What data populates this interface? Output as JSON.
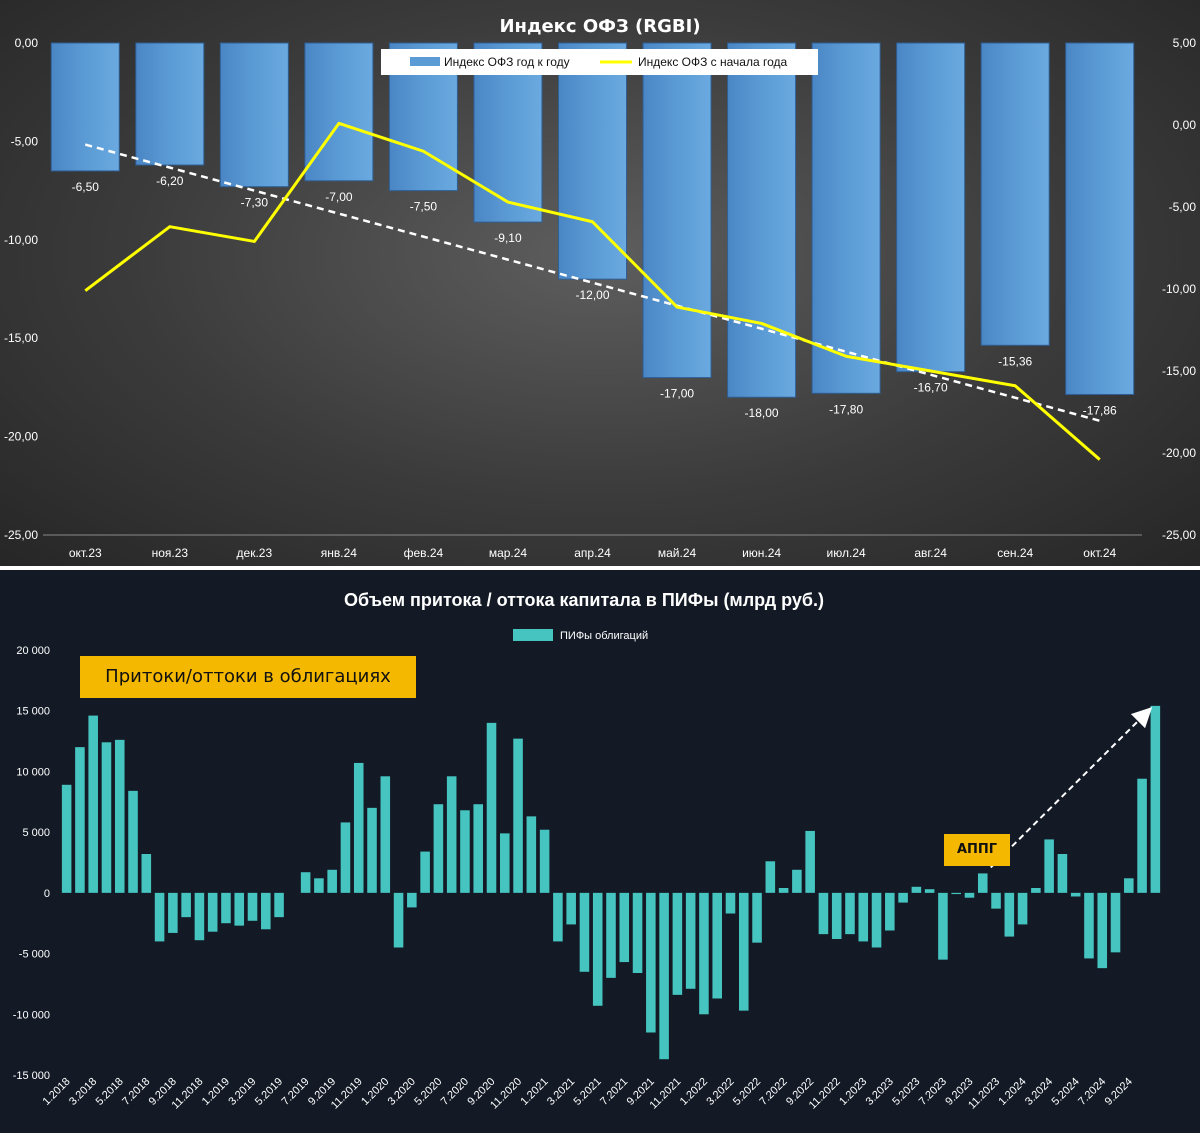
{
  "chart_data": [
    {
      "type": "bar",
      "title": "Индекс ОФЗ (RGBI)",
      "categories": [
        "окт.23",
        "ноя.23",
        "дек.23",
        "янв.24",
        "фев.24",
        "мар.24",
        "апр.24",
        "май.24",
        "июн.24",
        "июл.24",
        "авг.24",
        "сен.24",
        "окт.24"
      ],
      "series": [
        {
          "name": "Индекс ОФЗ год к году",
          "type": "bar",
          "axis": "left",
          "values": [
            -6.5,
            -6.2,
            -7.3,
            -7.0,
            -7.5,
            -9.1,
            -12.0,
            -17.0,
            -18.0,
            -17.8,
            -16.7,
            -15.36,
            -17.86
          ],
          "labels": [
            "-6,50",
            "-6,20",
            "-7,30",
            "-7,00",
            "-7,50",
            "-9,10",
            "-12,00",
            "-17,00",
            "-18,00",
            "-17,80",
            "-16,70",
            "-15,36",
            "-17,86"
          ],
          "color": "#5b9bd5"
        },
        {
          "name": "Индекс ОФЗ с начала года",
          "type": "line",
          "axis": "right",
          "values": [
            -10.1,
            -6.2,
            -7.1,
            0.1,
            -1.6,
            -4.7,
            -5.9,
            -11.1,
            -12.1,
            -14.1,
            -15.0,
            -15.9,
            -20.4
          ],
          "color": "#ffff00"
        }
      ],
      "trendline": {
        "style": "dashed",
        "color": "#ffffff",
        "applies_to": "Индекс ОФЗ год к году"
      },
      "ylim_left": [
        -25,
        0
      ],
      "ylim_right": [
        -25,
        5
      ],
      "yticks_left": [
        "0,00",
        "-5,00",
        "-10,00",
        "-15,00",
        "-20,00",
        "-25,00"
      ],
      "yticks_right": [
        "5,00",
        "0,00",
        "-5,00",
        "-10,00",
        "-15,00",
        "-20,00",
        "-25,00"
      ],
      "legend": "top-center"
    },
    {
      "type": "bar",
      "title": "Объем притока / оттока капитала в ПИФы (млрд руб.)",
      "series": [
        {
          "name": "ПИФы облигаций",
          "color": "#45c4c0",
          "values": [
            8900,
            12000,
            14600,
            12400,
            12600,
            8400,
            3200,
            -4000,
            -3300,
            -2000,
            -3900,
            -3200,
            -2500,
            -2700,
            -2300,
            -3000,
            -2000,
            0,
            1700,
            1200,
            1900,
            5800,
            10700,
            7000,
            9600,
            -4500,
            -1200,
            3400,
            7300,
            9600,
            6800,
            7300,
            14000,
            4900,
            12700,
            6300,
            5200,
            -4000,
            -2600,
            -6500,
            -9300,
            -7000,
            -5700,
            -6600,
            -11500,
            -13700,
            -8400,
            -7900,
            -10000,
            -8700,
            -1700,
            -9700,
            -4100,
            2600,
            400,
            1900,
            5100,
            -3400,
            -3800,
            -3400,
            -4000,
            -4500,
            -3100,
            -800,
            500,
            300,
            -5500,
            -100,
            -400,
            1600,
            -1300,
            -3600,
            -2600,
            400,
            4400,
            3200,
            -300,
            -5400,
            -6200,
            -4900,
            1200,
            9400,
            15400
          ]
        }
      ],
      "x_tick_labels": [
        "1.2018",
        "3.2018",
        "5.2018",
        "7.2018",
        "9.2018",
        "11.2018",
        "1.2019",
        "3.2019",
        "5.2019",
        "7.2019",
        "9.2019",
        "11.2019",
        "1.2020",
        "3.2020",
        "5.2020",
        "7.2020",
        "9.2020",
        "11.2020",
        "1.2021",
        "3.2021",
        "5.2021",
        "7.2021",
        "9.2021",
        "11.2021",
        "1.2022",
        "3.2022",
        "5.2022",
        "7.2022",
        "9.2022",
        "11.2022",
        "1.2023",
        "3.2023",
        "5.2023",
        "7.2023",
        "9.2023",
        "11.2023",
        "1.2024",
        "3.2024",
        "5.2024",
        "7.2024",
        "9.2024"
      ],
      "ylim": [
        -15000,
        20000
      ],
      "yticks": [
        "20 000",
        "15 000",
        "10 000",
        "5 000",
        "0",
        "-5 000",
        "-10 000",
        "-15 000"
      ],
      "legend": "top-center",
      "annotations": [
        {
          "text": "Притоки/оттоки в облигациях"
        },
        {
          "text": "АППГ"
        }
      ]
    }
  ]
}
